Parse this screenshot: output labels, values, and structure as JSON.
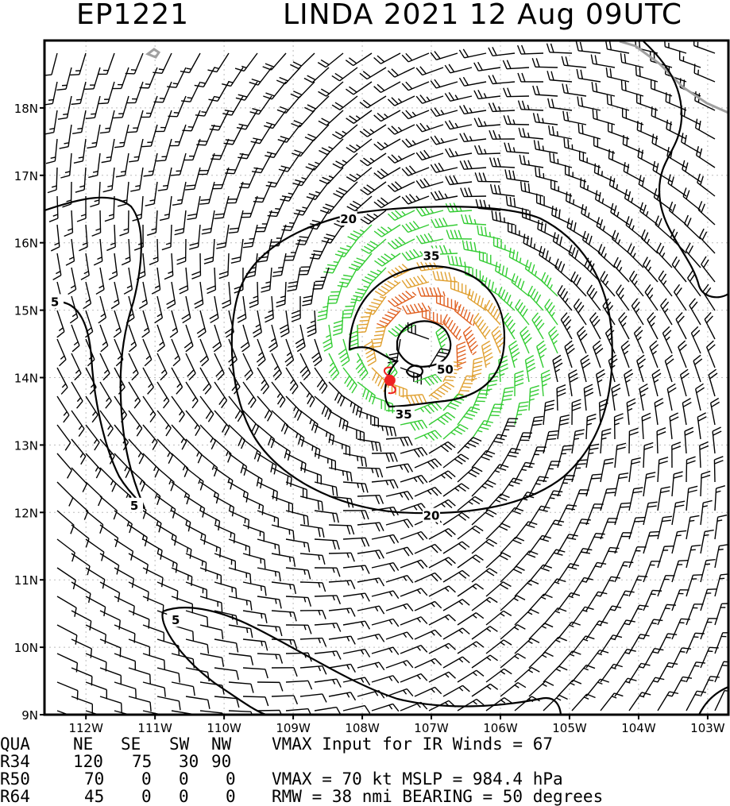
{
  "title": {
    "storm_id": "EP1221",
    "storm_label": "LINDA 2021 12 Aug 09UTC"
  },
  "map": {
    "lat_labels": [
      "18N",
      "17N",
      "16N",
      "15N",
      "14N",
      "13N",
      "12N",
      "11N",
      "10N",
      "9N"
    ],
    "lon_labels": [
      "112W",
      "111W",
      "110W",
      "109W",
      "108W",
      "107W",
      "106W",
      "105W",
      "104W",
      "103W"
    ],
    "contour_labels": [
      {
        "label": "5",
        "lon": -112.45,
        "lat": 15.12
      },
      {
        "label": "5",
        "lon": -111.3,
        "lat": 12.1
      },
      {
        "label": "5",
        "lon": -110.7,
        "lat": 10.4
      },
      {
        "label": "20",
        "lon": -108.2,
        "lat": 16.35
      },
      {
        "label": "20",
        "lon": -107.0,
        "lat": 11.95
      },
      {
        "label": "35",
        "lon": -107.0,
        "lat": 15.8
      },
      {
        "label": "35",
        "lon": -107.4,
        "lat": 13.45
      },
      {
        "label": "50",
        "lon": -106.8,
        "lat": 14.12
      }
    ],
    "storm_center": {
      "lon": -107.6,
      "lat": 13.96
    },
    "colors": {
      "weak": "#000000",
      "tropical_storm": "#33cc33",
      "strong": "#e0a030",
      "hurricane": "#e06020",
      "center": "#ee2222",
      "coast": "#a0a0a0"
    },
    "wind_field": {
      "vmax_kt": 70,
      "rmw_nmi": 38,
      "inflow_deg": 25,
      "center_lon": -107.2,
      "center_lat": 14.4
    }
  },
  "stats": {
    "headers": [
      "QUA",
      "NE",
      "SE",
      "SW",
      "NW"
    ],
    "rows": [
      {
        "label": "R34",
        "ne": "120",
        "se": "75",
        "sw": "30",
        "nw": "90"
      },
      {
        "label": "R50",
        "ne": "70",
        "se": "0",
        "sw": "0",
        "nw": "0"
      },
      {
        "label": "R64",
        "ne": "45",
        "se": "0",
        "sw": "0",
        "nw": "0"
      }
    ],
    "line1": "VMAX Input for IR Winds =    67",
    "line3": "VMAX =    70 kt MSLP =  984.4 hPa",
    "line4": "RMW  =    38 nmi BEARING =    50 degrees"
  }
}
